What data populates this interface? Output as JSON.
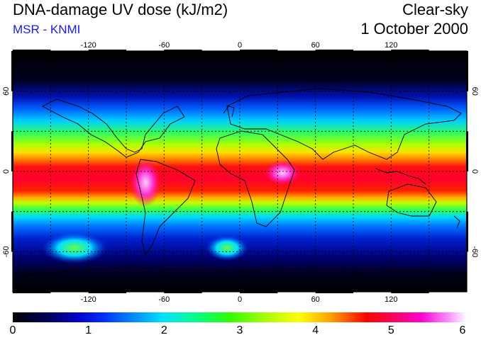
{
  "header": {
    "title": "DNA-damage UV dose (kJ/m2)",
    "subtitle": "MSR - KNMI",
    "sky_condition": "Clear-sky",
    "date": "1 October 2000"
  },
  "map": {
    "lon_ticks": [
      "-120",
      "-60",
      "0",
      "60",
      "120"
    ],
    "lat_ticks_left": [
      "60",
      "0",
      "-60"
    ],
    "lat_ticks_right": [
      "60",
      "0",
      "-60"
    ],
    "lon_range": [
      -180,
      180
    ],
    "lat_range": [
      -90,
      90
    ],
    "gridlines": "dashed every 30 degrees",
    "overlay": "coastlines"
  },
  "colorbar": {
    "labels": [
      "0",
      "1",
      "2",
      "3",
      "4",
      "5",
      "6"
    ],
    "min": 0,
    "max": 6,
    "colors": [
      "#000000",
      "#0000c8",
      "#00e0ff",
      "#30ff00",
      "#ffff00",
      "#ff0000",
      "#ff00d0",
      "#ffffff"
    ]
  }
}
